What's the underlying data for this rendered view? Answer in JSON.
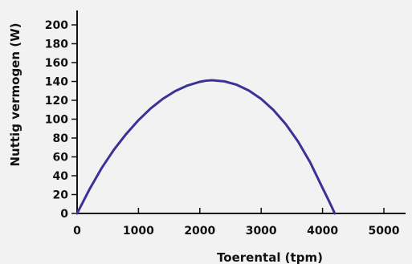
{
  "chart_data": {
    "type": "line",
    "title": "",
    "xlabel": "Toerental (tpm)",
    "ylabel": "Nuttig vermogen (W)",
    "xlim": [
      0,
      5000
    ],
    "ylim": [
      0,
      200
    ],
    "x_ticks": [
      0,
      1000,
      2000,
      3000,
      4000,
      5000
    ],
    "y_ticks": [
      0,
      20,
      40,
      60,
      80,
      100,
      120,
      140,
      160,
      180,
      200
    ],
    "grid": false,
    "legend": "none",
    "colors": {
      "line": "#3a3396",
      "axis": "#111111"
    },
    "series": [
      {
        "x": [
          0,
          200,
          400,
          600,
          800,
          1000,
          1200,
          1400,
          1600,
          1800,
          2000,
          2100,
          2200,
          2400,
          2600,
          2800,
          3000,
          3200,
          3400,
          3600,
          3800,
          4000,
          4100,
          4200
        ],
        "y": [
          0,
          25.4,
          48.1,
          67.6,
          84.3,
          98.9,
          111.4,
          121.7,
          129.8,
          135.7,
          139.6,
          140.8,
          141.3,
          140.1,
          136.5,
          130.3,
          121.5,
          109.7,
          94.8,
          76.4,
          54.0,
          27.1,
          13.9,
          0
        ]
      }
    ]
  }
}
